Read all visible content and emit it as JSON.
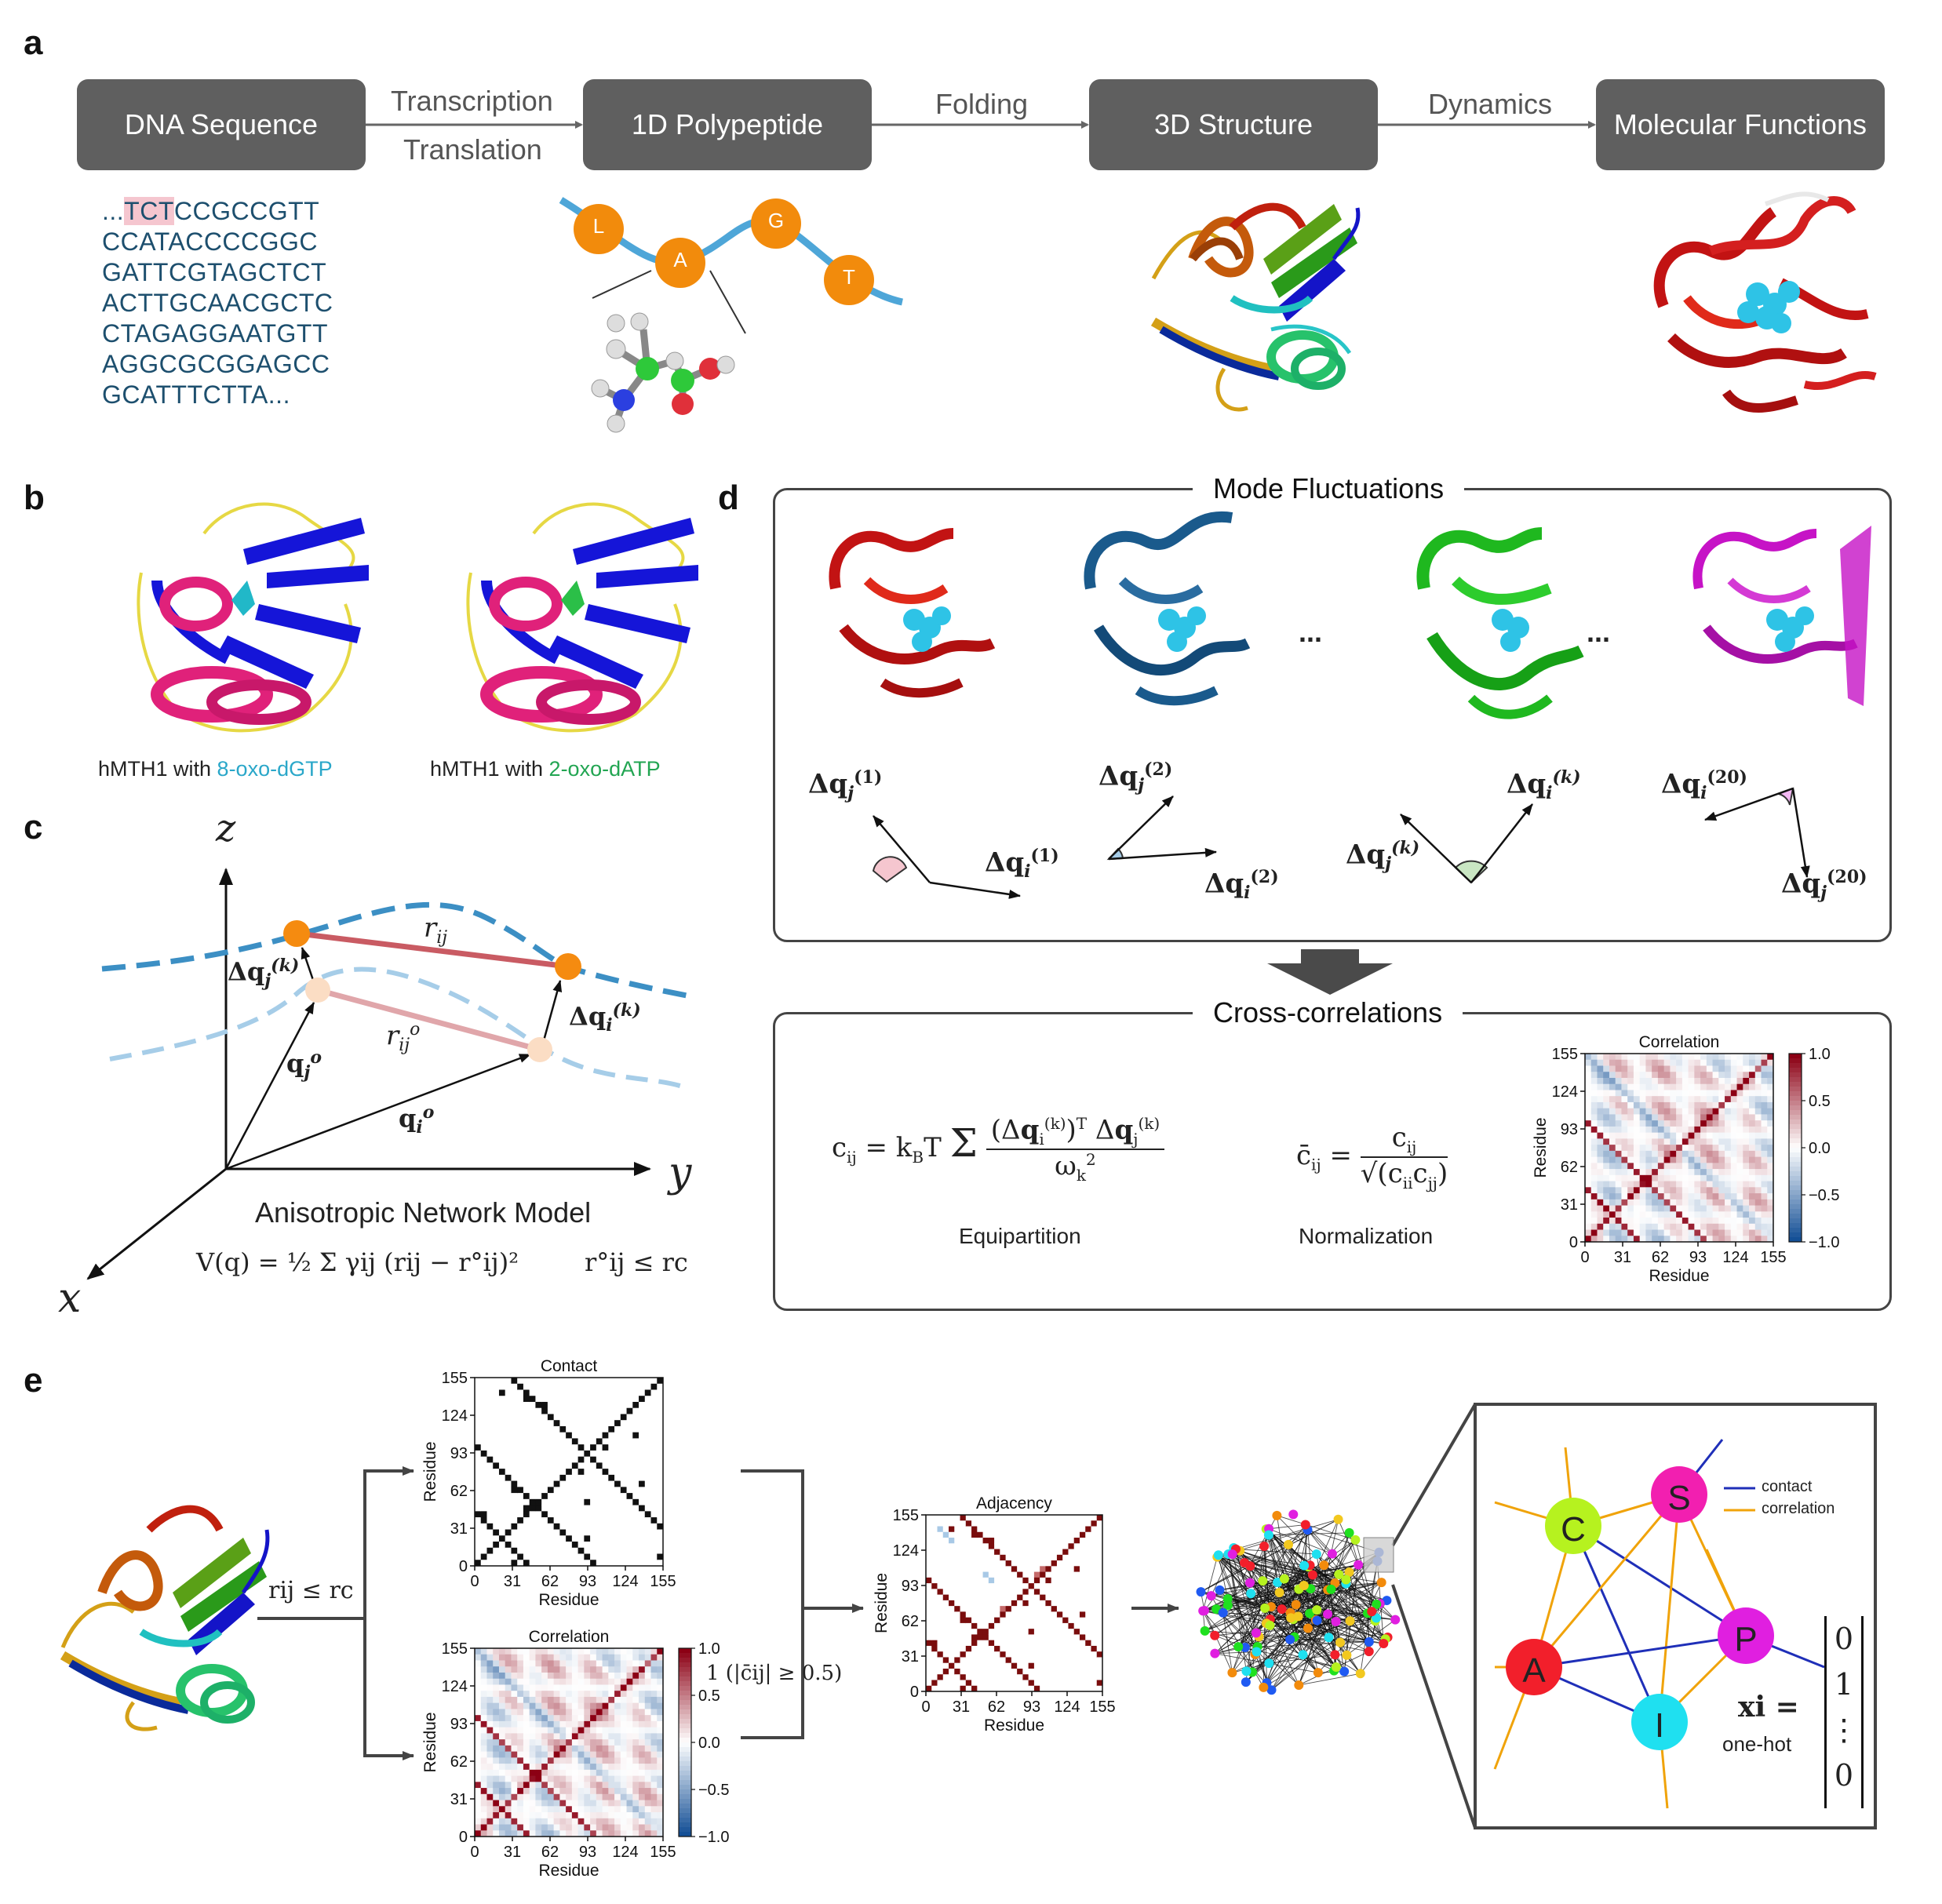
{
  "panels": {
    "a": "a",
    "b": "b",
    "c": "c",
    "d": "d",
    "e": "e"
  },
  "panel_a": {
    "boxes": [
      "DNA Sequence",
      "1D Polypeptide",
      "3D Structure",
      "Molecular Functions"
    ],
    "arrow_labels": {
      "transcription": "Transcription",
      "translation": "Translation",
      "folding": "Folding",
      "dynamics": "Dynamics"
    },
    "dna_prefix": "...",
    "dna_highlight": "TCT",
    "dna_first_rest": "CCGCCGTT",
    "dna_lines": [
      "CCATACCCCGGC",
      "GATTCGTAGCTCT",
      "ACTTGCAACGCTC",
      "CTAGAGGAATGTT",
      "AGGCGCGGAGCC",
      "GCATTTCTTA..."
    ],
    "residues": [
      "L",
      "A",
      "G",
      "T"
    ]
  },
  "panel_b": {
    "caption_left_prefix": "hMTH1 with ",
    "caption_left_ligand": "8-oxo-dGTP",
    "caption_right_prefix": "hMTH1 with ",
    "caption_right_ligand": "2-oxo-dATP"
  },
  "panel_c": {
    "axes": {
      "x": "x",
      "y": "y",
      "z": "z"
    },
    "title": "Anisotropic Network Model",
    "symbols": {
      "r_ij": "r",
      "r_ij_sub": "ij",
      "r0_ij": "r",
      "q_i0": "q",
      "q_j0": "q"
    },
    "potential": "V(q) = ½ Σ γij (rij − r°ij)²",
    "cutoff": "r°ij ≤ rc"
  },
  "panel_d": {
    "mode_title": "Mode Fluctuations",
    "dots": "...",
    "cross_title": "Cross-correlations",
    "equipartition_label": "Equipartition",
    "normalization_label": "Normalization",
    "modes": [
      "(1)",
      "(2)",
      "(k)",
      "(20)"
    ],
    "heatmap": {
      "title": "Correlation",
      "xlabel": "Residue",
      "ylabel": "Residue",
      "ticks": [
        "0",
        "31",
        "62",
        "93",
        "124",
        "155"
      ],
      "colorbar_ticks": [
        "1.0",
        "0.5",
        "0.0",
        "−0.5",
        "−1.0"
      ]
    }
  },
  "panel_e": {
    "edge_condition": "rij ≤ rc",
    "threshold": "1 (|c̄ij| ≥ 0.5)",
    "contact": {
      "title": "Contact",
      "xlabel": "Residue",
      "ylabel": "Residue"
    },
    "correlation": {
      "title": "Correlation",
      "xlabel": "Residue",
      "ylabel": "Residue"
    },
    "adjacency": {
      "title": "Adjacency",
      "xlabel": "Residue",
      "ylabel": "Residue"
    },
    "ticks": [
      "0",
      "31",
      "62",
      "93",
      "124",
      "155"
    ],
    "colorbar_ticks": [
      "1.0",
      "0.5",
      "0.0",
      "−0.5",
      "−1.0"
    ],
    "legend": {
      "contact": "contact",
      "correlation": "correlation"
    },
    "nodes": [
      "C",
      "S",
      "A",
      "P",
      "I"
    ],
    "feature_label": "xi =",
    "one_hot": "one-hot",
    "vector": [
      "0",
      "1",
      "⋮",
      "0"
    ]
  },
  "colors": {
    "contact_edge": "#1f2fb8",
    "correlation_edge": "#f0a30a",
    "box": "#5f5f5f",
    "residue": "#f28b0c",
    "chain": "#4ea6d8"
  }
}
